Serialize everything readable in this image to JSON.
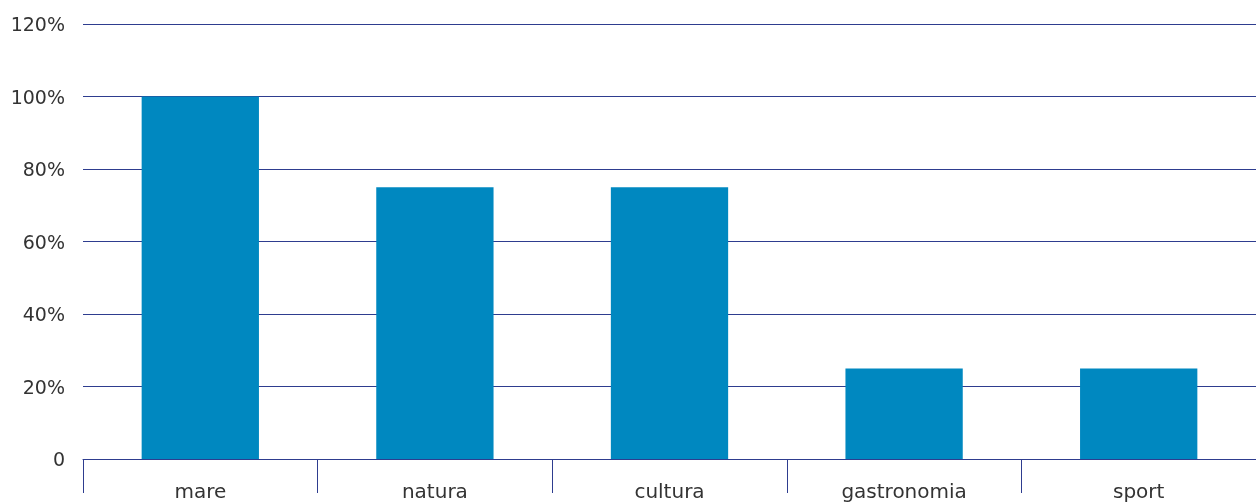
{
  "chart_data": {
    "type": "bar",
    "categories": [
      "mare",
      "natura",
      "cultura",
      "gastronomia",
      "sport"
    ],
    "values": [
      100,
      75,
      75,
      25,
      25
    ],
    "color": "#0088c0",
    "ylim": [
      0,
      120
    ],
    "yticks": [
      {
        "value": 0,
        "label": "0"
      },
      {
        "value": 20,
        "label": "20%"
      },
      {
        "value": 40,
        "label": "40%"
      },
      {
        "value": 60,
        "label": "60%"
      },
      {
        "value": 80,
        "label": "80%"
      },
      {
        "value": 100,
        "label": "100%"
      },
      {
        "value": 120,
        "label": "120%"
      }
    ],
    "grid": "y"
  }
}
